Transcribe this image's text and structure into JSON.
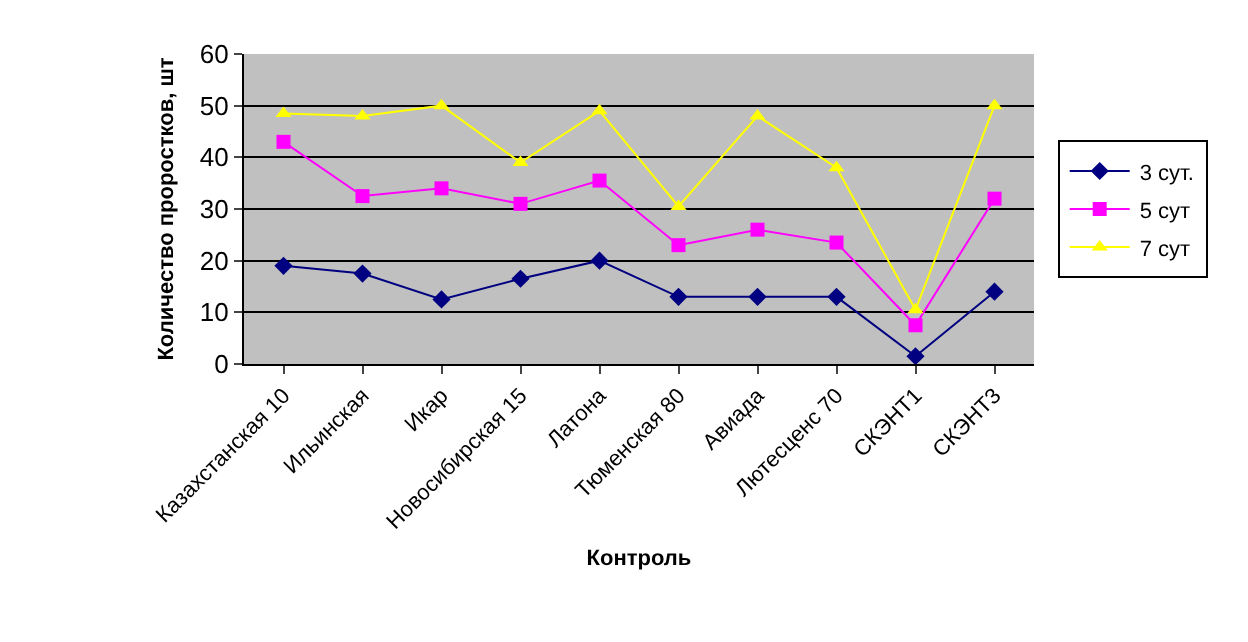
{
  "chart_data": {
    "type": "line",
    "xlabel": "Контроль",
    "ylabel": "Количество проростков, шт",
    "categories": [
      "Казахстанская 10",
      "Ильинская",
      "Икар",
      "Новосибирская 15",
      "Латона",
      "Тюменская 80",
      "Авиада",
      "Лютесценс 70",
      "СКЭНТ1",
      "СКЭНТ3"
    ],
    "series": [
      {
        "name": "3 сут.",
        "color": "#000080",
        "marker": "diamond",
        "values": [
          19,
          17.5,
          12.5,
          16.5,
          20,
          13,
          13,
          13,
          1.5,
          14
        ]
      },
      {
        "name": "5 сут",
        "color": "#ff00ff",
        "marker": "square",
        "values": [
          43,
          32.5,
          34,
          31,
          35.5,
          23,
          26,
          23.5,
          7.5,
          32
        ]
      },
      {
        "name": "7 сут",
        "color": "#ffff00",
        "marker": "triangle",
        "values": [
          48.5,
          48,
          50,
          39,
          49,
          30.5,
          48,
          38,
          10.5,
          50
        ]
      }
    ],
    "ylim": [
      0,
      60
    ],
    "yticks": [
      0,
      10,
      20,
      30,
      40,
      50,
      60
    ],
    "grid": "y",
    "legend": "right",
    "line_style": "solid"
  }
}
